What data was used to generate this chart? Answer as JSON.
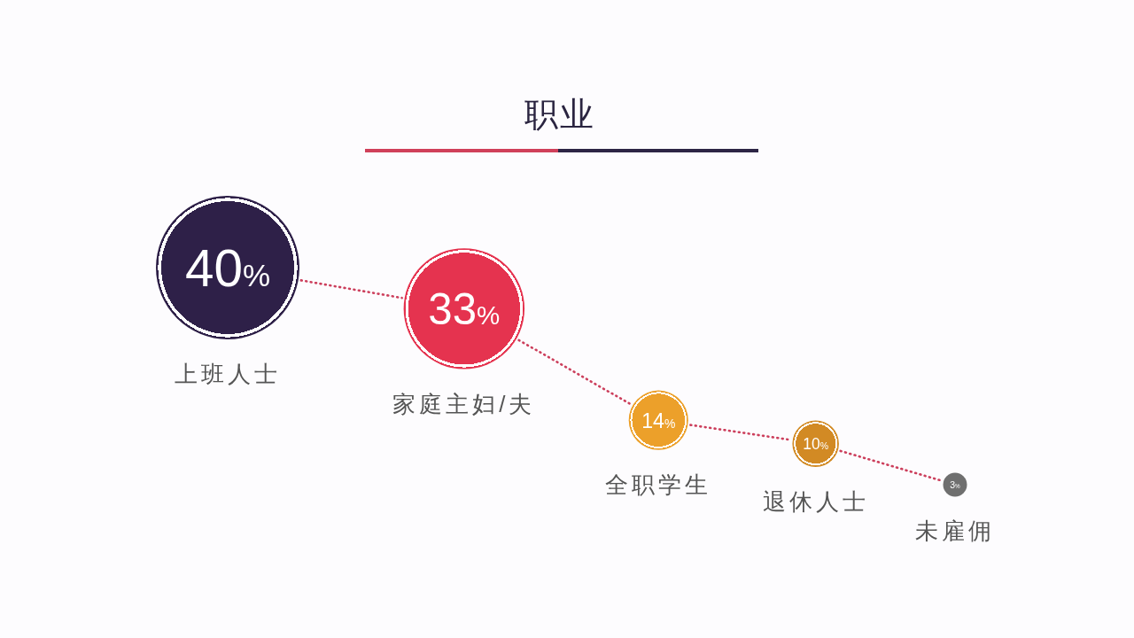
{
  "chart_data": {
    "type": "other",
    "title": "职业",
    "categories": [
      "上班人士",
      "家庭主妇/夫",
      "全职学生",
      "退休人士",
      "未雇佣"
    ],
    "values": [
      40,
      33,
      14,
      10,
      3
    ],
    "colors": [
      "#2e2048",
      "#e5334f",
      "#eca02a",
      "#d28a24",
      "#6f6f6f"
    ],
    "value_labels": [
      "40%",
      "33%",
      "14%",
      "10%",
      "3%"
    ]
  }
}
